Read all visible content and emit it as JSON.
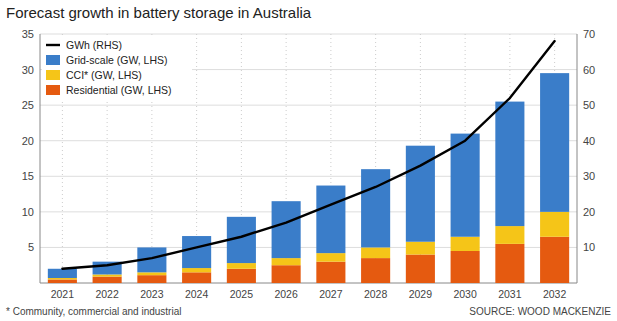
{
  "chart_data": {
    "type": "bar",
    "title": "Forecast growth in battery storage in Australia",
    "categories": [
      "2021",
      "2022",
      "2023",
      "2024",
      "2025",
      "2026",
      "2027",
      "2028",
      "2029",
      "2030",
      "2031",
      "2032"
    ],
    "series": [
      {
        "name": "Residential (GW, LHS)",
        "type": "bar",
        "color": "#e55a10",
        "values": [
          0.5,
          0.9,
          1.1,
          1.5,
          2.0,
          2.5,
          3.0,
          3.5,
          4.0,
          4.5,
          5.5,
          6.5
        ]
      },
      {
        "name": "CCI* (GW, LHS)",
        "type": "bar",
        "color": "#f5c518",
        "values": [
          0.2,
          0.3,
          0.4,
          0.6,
          0.8,
          1.0,
          1.2,
          1.5,
          1.8,
          2.0,
          2.5,
          3.5
        ]
      },
      {
        "name": "Grid-scale (GW, LHS)",
        "type": "bar",
        "color": "#3a7dc9",
        "values": [
          1.3,
          1.8,
          3.5,
          4.5,
          6.5,
          8.0,
          9.5,
          11.0,
          13.5,
          14.5,
          17.5,
          19.5
        ]
      },
      {
        "name": "GWh (RHS)",
        "type": "line",
        "axis": "y2",
        "color": "#000000",
        "values": [
          4,
          5,
          7,
          10,
          13,
          17,
          22,
          27,
          33,
          40,
          52,
          68
        ]
      }
    ],
    "stacked": true,
    "ylim": [
      0,
      35
    ],
    "yticks": [
      5,
      10,
      15,
      20,
      25,
      30,
      35
    ],
    "y2lim": [
      0,
      70
    ],
    "y2ticks": [
      10,
      20,
      30,
      40,
      50,
      60,
      70
    ],
    "grid": true,
    "legend": "upper-left",
    "annotations": [
      "* Community, commercial and industrial",
      "SOURCE: WOOD MACKENZIE"
    ]
  }
}
